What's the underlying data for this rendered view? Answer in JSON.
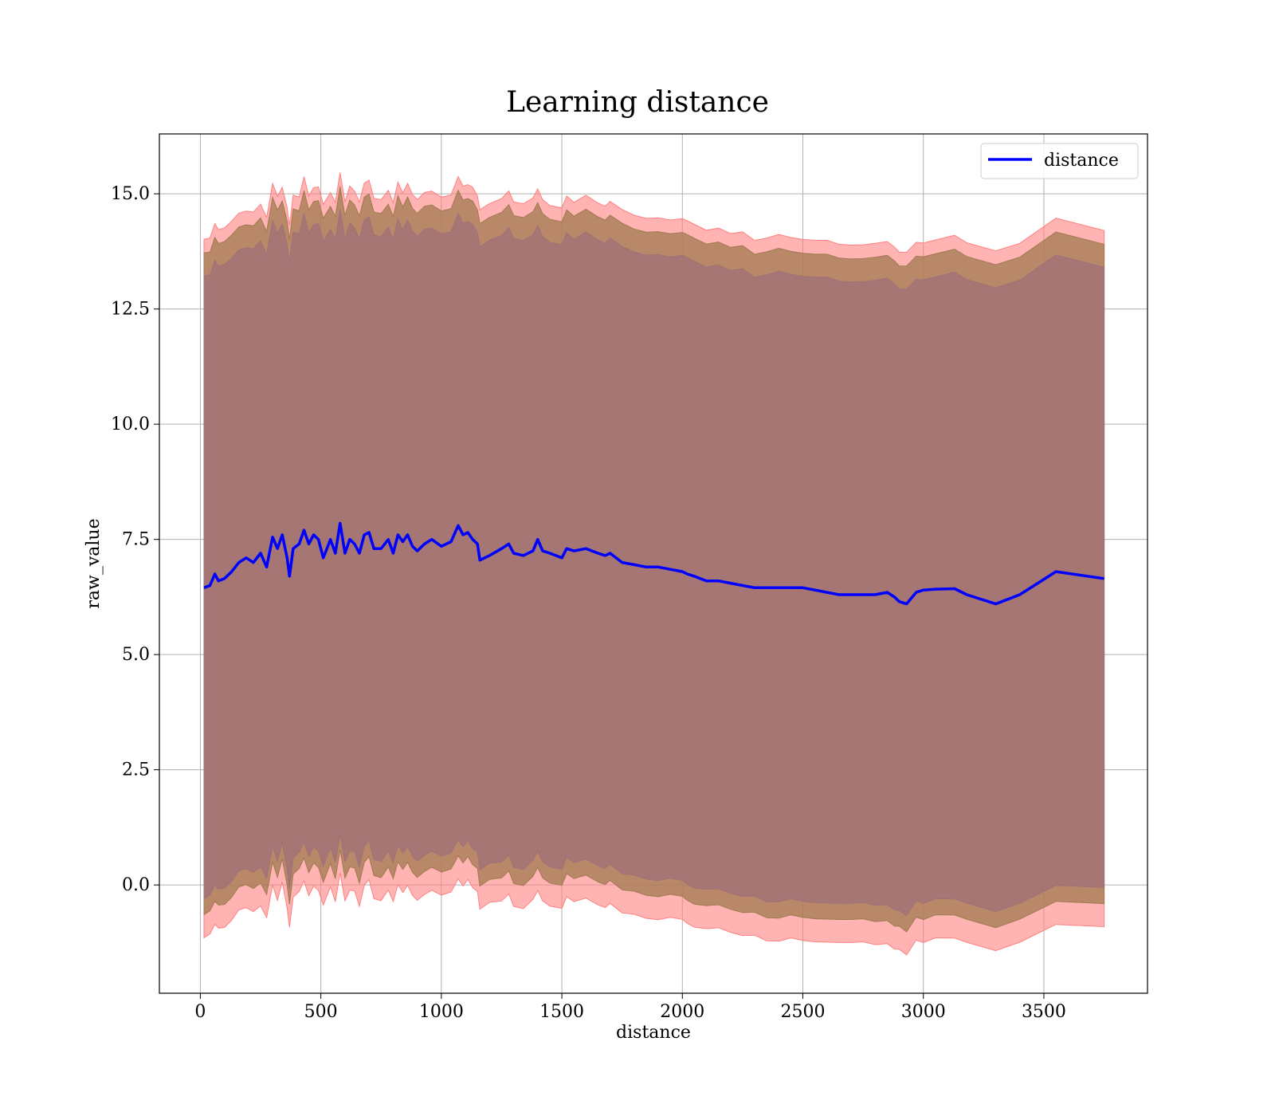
{
  "chart_data": {
    "type": "line",
    "title": "Learning distance",
    "xlabel": "distance",
    "ylabel": "raw_value",
    "xlim": [
      -170,
      3930
    ],
    "ylim": [
      -2.35,
      16.3
    ],
    "xticks": [
      0,
      500,
      1000,
      1500,
      2000,
      2500,
      3000,
      3500
    ],
    "xtick_labels": [
      "0",
      "500",
      "1000",
      "1500",
      "2000",
      "2500",
      "3000",
      "3500"
    ],
    "yticks": [
      0.0,
      2.5,
      5.0,
      7.5,
      10.0,
      12.5,
      15.0
    ],
    "ytick_labels": [
      "0.0",
      "2.5",
      "5.0",
      "7.5",
      "10.0",
      "12.5",
      "15.0"
    ],
    "grid": true,
    "legend": {
      "position": "top-right",
      "entries": [
        "distance"
      ]
    },
    "colors": {
      "line": "#0000ff",
      "outer_band": "#ff8080",
      "middle_band": "#a07a50",
      "inner_band": "#a07078"
    },
    "series": [
      {
        "name": "distance",
        "kind": "line",
        "x": [
          15,
          40,
          60,
          75,
          100,
          130,
          160,
          190,
          220,
          250,
          275,
          300,
          320,
          340,
          360,
          370,
          385,
          410,
          430,
          450,
          470,
          490,
          510,
          540,
          560,
          580,
          600,
          620,
          640,
          660,
          680,
          700,
          720,
          750,
          780,
          800,
          820,
          840,
          860,
          880,
          900,
          930,
          960,
          1000,
          1040,
          1070,
          1090,
          1110,
          1130,
          1150,
          1160,
          1200,
          1250,
          1280,
          1300,
          1340,
          1380,
          1400,
          1420,
          1450,
          1500,
          1520,
          1550,
          1600,
          1650,
          1680,
          1700,
          1750,
          1800,
          1850,
          1900,
          1950,
          2000,
          2020,
          2050,
          2100,
          2150,
          2200,
          2250,
          2300,
          2350,
          2400,
          2450,
          2500,
          2550,
          2600,
          2650,
          2700,
          2750,
          2800,
          2850,
          2880,
          2900,
          2930,
          2970,
          3000,
          3050,
          3130,
          3180,
          3300,
          3400,
          3550,
          3750
        ],
        "y": [
          6.45,
          6.5,
          6.75,
          6.6,
          6.65,
          6.8,
          7.0,
          7.1,
          7.0,
          7.2,
          6.9,
          7.55,
          7.3,
          7.6,
          7.1,
          6.7,
          7.3,
          7.4,
          7.7,
          7.4,
          7.6,
          7.5,
          7.1,
          7.5,
          7.2,
          7.85,
          7.2,
          7.5,
          7.4,
          7.2,
          7.6,
          7.65,
          7.3,
          7.3,
          7.5,
          7.2,
          7.6,
          7.45,
          7.6,
          7.35,
          7.25,
          7.4,
          7.5,
          7.35,
          7.45,
          7.8,
          7.6,
          7.65,
          7.5,
          7.4,
          7.05,
          7.15,
          7.3,
          7.4,
          7.2,
          7.15,
          7.25,
          7.5,
          7.25,
          7.2,
          7.1,
          7.3,
          7.25,
          7.3,
          7.2,
          7.15,
          7.2,
          7.0,
          6.95,
          6.9,
          6.9,
          6.85,
          6.8,
          6.75,
          6.7,
          6.6,
          6.6,
          6.55,
          6.5,
          6.45,
          6.45,
          6.45,
          6.45,
          6.45,
          6.4,
          6.35,
          6.3,
          6.3,
          6.3,
          6.3,
          6.35,
          6.25,
          6.15,
          6.1,
          6.35,
          6.4,
          6.42,
          6.43,
          6.3,
          6.1,
          6.3,
          6.8,
          6.65
        ]
      }
    ],
    "bands": [
      {
        "kind": "fill_between",
        "color": "#ff8080",
        "note": "outer",
        "offset_upper": 7.6,
        "offset_lower": 7.6
      },
      {
        "kind": "fill_between",
        "color": "#a07a50",
        "note": "middle",
        "offset_upper": 7.3,
        "offset_lower": 7.1
      },
      {
        "kind": "fill_between",
        "color": "#a07078",
        "note": "inner",
        "offset_upper": 6.8,
        "offset_lower": 6.75
      }
    ]
  }
}
